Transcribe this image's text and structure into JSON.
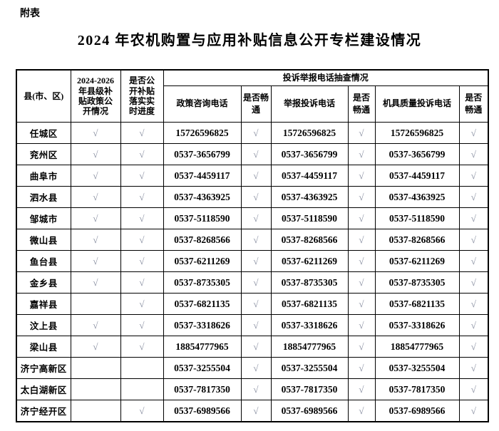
{
  "page": {
    "appendix_label": "附表",
    "title": "2024 年农机购置与应用补贴信息公开专栏建设情况"
  },
  "theme": {
    "border_color": "#000000",
    "text_color": "#000000",
    "check_color": "#8a90a2",
    "background": "#ffffff"
  },
  "table": {
    "headers": {
      "county": "县(市、区)",
      "policy_disclosure": "2024-2026年县级补贴政策公开情况",
      "realtime_progress": "是否公开补贴落实实时进度",
      "phone_spotcheck_group": "投诉举报电话抽查情况",
      "policy_phone": "政策咨询电话",
      "connected": "是否畅通",
      "report_phone": "举报投诉电话",
      "quality_phone": "机具质量投诉电话"
    },
    "check_mark": "√",
    "rows": [
      {
        "county": "任城区",
        "policy_disclosed": "√",
        "realtime_disclosed": "√",
        "policy_phone": "15726596825",
        "policy_ok": "√",
        "report_phone": "15726596825",
        "report_ok": "√",
        "quality_phone": "15726596825",
        "quality_ok": "√"
      },
      {
        "county": "兖州区",
        "policy_disclosed": "√",
        "realtime_disclosed": "√",
        "policy_phone": "0537-3656799",
        "policy_ok": "√",
        "report_phone": "0537-3656799",
        "report_ok": "√",
        "quality_phone": "0537-3656799",
        "quality_ok": "√"
      },
      {
        "county": "曲阜市",
        "policy_disclosed": "√",
        "realtime_disclosed": "√",
        "policy_phone": "0537-4459117",
        "policy_ok": "√",
        "report_phone": "0537-4459117",
        "report_ok": "√",
        "quality_phone": "0537-4459117",
        "quality_ok": "√"
      },
      {
        "county": "泗水县",
        "policy_disclosed": "√",
        "realtime_disclosed": "√",
        "policy_phone": "0537-4363925",
        "policy_ok": "√",
        "report_phone": "0537-4363925",
        "report_ok": "√",
        "quality_phone": "0537-4363925",
        "quality_ok": "√"
      },
      {
        "county": "邹城市",
        "policy_disclosed": "√",
        "realtime_disclosed": "√",
        "policy_phone": "0537-5118590",
        "policy_ok": "√",
        "report_phone": "0537-5118590",
        "report_ok": "√",
        "quality_phone": "0537-5118590",
        "quality_ok": "√"
      },
      {
        "county": "微山县",
        "policy_disclosed": "√",
        "realtime_disclosed": "√",
        "policy_phone": "0537-8268566",
        "policy_ok": "√",
        "report_phone": "0537-8268566",
        "report_ok": "√",
        "quality_phone": "0537-8268566",
        "quality_ok": "√"
      },
      {
        "county": "鱼台县",
        "policy_disclosed": "√",
        "realtime_disclosed": "√",
        "policy_phone": "0537-6211269",
        "policy_ok": "√",
        "report_phone": "0537-6211269",
        "report_ok": "√",
        "quality_phone": "0537-6211269",
        "quality_ok": "√"
      },
      {
        "county": "金乡县",
        "policy_disclosed": "√",
        "realtime_disclosed": "√",
        "policy_phone": "0537-8735305",
        "policy_ok": "√",
        "report_phone": "0537-8735305",
        "report_ok": "√",
        "quality_phone": "0537-8735305",
        "quality_ok": "√"
      },
      {
        "county": "嘉祥县",
        "policy_disclosed": "",
        "realtime_disclosed": "√",
        "policy_phone": "0537-6821135",
        "policy_ok": "√",
        "report_phone": "0537-6821135",
        "report_ok": "√",
        "quality_phone": "0537-6821135",
        "quality_ok": "√"
      },
      {
        "county": "汶上县",
        "policy_disclosed": "√",
        "realtime_disclosed": "√",
        "policy_phone": "0537-3318626",
        "policy_ok": "√",
        "report_phone": "0537-3318626",
        "report_ok": "√",
        "quality_phone": "0537-3318626",
        "quality_ok": "√"
      },
      {
        "county": "梁山县",
        "policy_disclosed": "√",
        "realtime_disclosed": "√",
        "policy_phone": "18854777965",
        "policy_ok": "√",
        "report_phone": "18854777965",
        "report_ok": "√",
        "quality_phone": "18854777965",
        "quality_ok": "√"
      },
      {
        "county": "济宁高新区",
        "policy_disclosed": "",
        "realtime_disclosed": "",
        "policy_phone": "0537-3255504",
        "policy_ok": "√",
        "report_phone": "0537-3255504",
        "report_ok": "√",
        "quality_phone": "0537-3255504",
        "quality_ok": "√"
      },
      {
        "county": "太白湖新区",
        "policy_disclosed": "",
        "realtime_disclosed": "",
        "policy_phone": "0537-7817350",
        "policy_ok": "√",
        "report_phone": "0537-7817350",
        "report_ok": "√",
        "quality_phone": "0537-7817350",
        "quality_ok": "√"
      },
      {
        "county": "济宁经开区",
        "policy_disclosed": "",
        "realtime_disclosed": "√",
        "policy_phone": "0537-6989566",
        "policy_ok": "√",
        "report_phone": "0537-6989566",
        "report_ok": "√",
        "quality_phone": "0537-6989566",
        "quality_ok": "√"
      }
    ]
  }
}
